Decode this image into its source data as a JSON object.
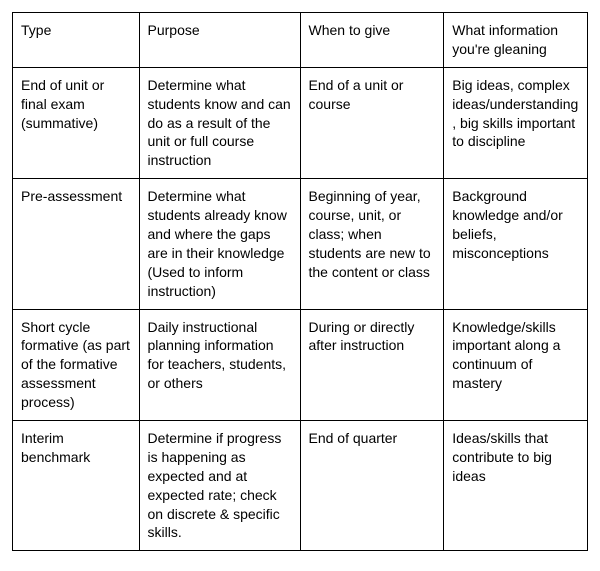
{
  "table": {
    "columns": [
      "Type",
      "Purpose",
      "When to give",
      "What information you're gleaning"
    ],
    "rows": [
      [
        "End of unit or final exam (summative)",
        "Determine what students know and can do as a result of the unit or full course instruction",
        "End of a unit or course",
        "Big ideas, complex ideas/understanding, big skills important to discipline"
      ],
      [
        "Pre-assessment",
        "Determine what students already know and where the gaps are in their knowledge (Used to inform instruction)",
        "Beginning of year, course, unit, or class; when students are new to the content or class",
        "Background knowledge and/or beliefs, misconceptions"
      ],
      [
        "Short cycle formative (as part of the formative assessment process)",
        "Daily instructional planning information for teachers, students, or others",
        "During or directly after instruction",
        "Knowledge/skills important along a continuum of mastery"
      ],
      [
        "Interim benchmark",
        "Determine if progress is happening as expected and at expected rate; check on discrete & specific skills.",
        "End of quarter",
        "Ideas/skills that contribute to big ideas"
      ]
    ],
    "col_widths_pct": [
      22,
      28,
      25,
      25
    ],
    "border_color": "#000000",
    "background_color": "#ffffff",
    "text_color": "#000000",
    "font_family": "Arial, Helvetica, sans-serif",
    "font_size_pt": 11
  }
}
